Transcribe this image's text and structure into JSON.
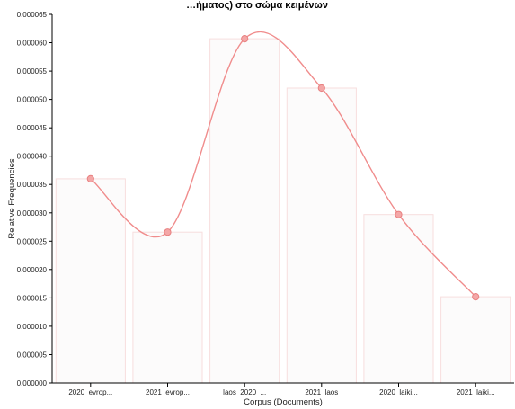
{
  "chart_data": {
    "type": "bar",
    "title": "…ήματος) στο σώμα κειμένων",
    "xlabel": "Corpus (Documents)",
    "ylabel": "Relative Frequencies",
    "categories": [
      "2020_evrop...",
      "2021_evrop...",
      "laos_2020_...",
      "2021_laos",
      "2020_laiki...",
      "2021_laiki..."
    ],
    "values": [
      3.6e-05,
      2.66e-05,
      6.07e-05,
      5.2e-05,
      2.97e-05,
      1.52e-05
    ],
    "ylim": [
      0,
      6.5e-05
    ],
    "yticks": [
      "0.000000",
      "0.000005",
      "0.000010",
      "0.000015",
      "0.000020",
      "0.000025",
      "0.000030",
      "0.000035",
      "0.000040",
      "0.000045",
      "0.000050",
      "0.000055",
      "0.000060",
      "0.000065"
    ],
    "overlay": "smoothed line through bar tops",
    "grid": false,
    "colors": {
      "bar_fill": "#fcfbfb",
      "bar_stroke": "#f7dede",
      "line": "#f08c8c",
      "point_fill": "#f4a7a7",
      "point_stroke": "#e88080",
      "axis": "#000000"
    }
  }
}
